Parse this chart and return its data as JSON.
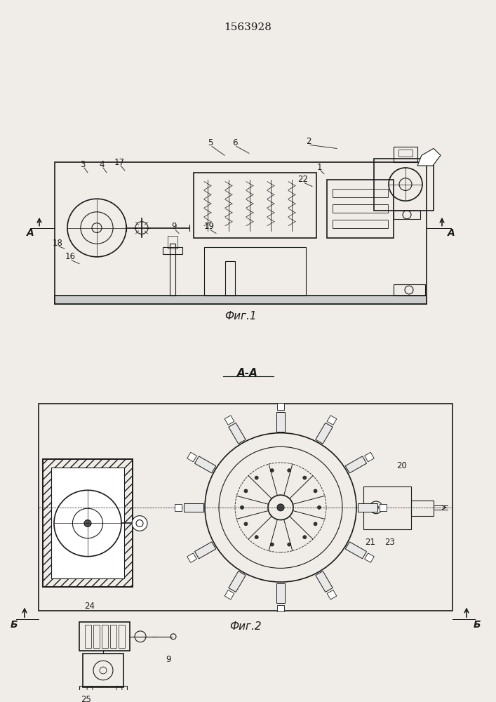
{
  "title": "1563928",
  "fig1_caption": "Фиг.1",
  "fig2_caption": "Фиг.2",
  "section_label": "А-А",
  "bg_color": "#f0ede8",
  "line_color": "#1a1a1a"
}
